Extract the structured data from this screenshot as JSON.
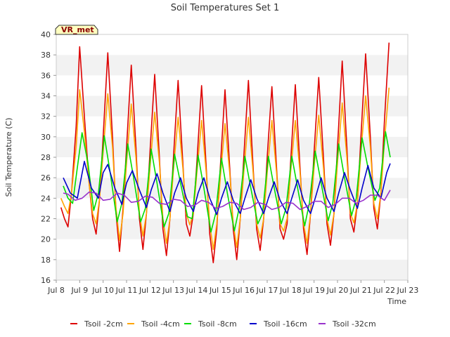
{
  "chart_data": {
    "type": "line",
    "title": "Soil Temperatures Set 1",
    "xlabel": "Time",
    "ylabel": "Soil Temperature (C)",
    "xlim": [
      8,
      23
    ],
    "ylim": [
      16,
      40
    ],
    "x_ticks": [
      {
        "value": 8,
        "label": "Jul 8"
      },
      {
        "value": 9,
        "label": "Jul 9"
      },
      {
        "value": 10,
        "label": "Jul 10"
      },
      {
        "value": 11,
        "label": "Jul 11"
      },
      {
        "value": 12,
        "label": "Jul 12"
      },
      {
        "value": 13,
        "label": "Jul 13"
      },
      {
        "value": 14,
        "label": "Jul 14"
      },
      {
        "value": 15,
        "label": "Jul 15"
      },
      {
        "value": 16,
        "label": "Jul 16"
      },
      {
        "value": 17,
        "label": "Jul 17"
      },
      {
        "value": 18,
        "label": "Jul 18"
      },
      {
        "value": 19,
        "label": "Jul 19"
      },
      {
        "value": 20,
        "label": "Jul 20"
      },
      {
        "value": 21,
        "label": "Jul 21"
      },
      {
        "value": 22,
        "label": "Jul 22"
      },
      {
        "value": 23,
        "label": "Jul 23"
      }
    ],
    "y_ticks": [
      16,
      18,
      20,
      22,
      24,
      26,
      28,
      30,
      32,
      34,
      36,
      38,
      40
    ],
    "grid": "horizontal bands",
    "legend_position": "bottom",
    "station_label": "VR_met",
    "series": [
      {
        "name": "Tsoil -2cm",
        "color": "#dd0000",
        "x": [
          8.2,
          8.35,
          8.5,
          8.65,
          8.85,
          9.0,
          9.2,
          9.4,
          9.55,
          9.7,
          9.85,
          10.0,
          10.2,
          10.4,
          10.55,
          10.7,
          10.85,
          11.0,
          11.2,
          11.4,
          11.55,
          11.7,
          11.85,
          12.0,
          12.2,
          12.4,
          12.55,
          12.7,
          12.85,
          13.0,
          13.2,
          13.4,
          13.55,
          13.7,
          13.85,
          14.0,
          14.2,
          14.4,
          14.55,
          14.7,
          14.85,
          15.0,
          15.2,
          15.4,
          15.55,
          15.7,
          15.85,
          16.0,
          16.2,
          16.4,
          16.55,
          16.7,
          16.85,
          17.0,
          17.2,
          17.4,
          17.55,
          17.7,
          17.85,
          18.0,
          18.2,
          18.4,
          18.55,
          18.7,
          18.85,
          19.0,
          19.2,
          19.4,
          19.55,
          19.7,
          19.85,
          20.0,
          20.2,
          20.4,
          20.55,
          20.7,
          20.85,
          21.0,
          21.2,
          21.4,
          21.55,
          21.7,
          21.85,
          22.0,
          22.2
        ],
        "y": [
          23.1,
          22.0,
          21.2,
          24.5,
          31.0,
          38.8,
          32.0,
          25.5,
          22.0,
          20.5,
          24.0,
          30.0,
          38.2,
          30.0,
          22.5,
          18.8,
          23.0,
          29.0,
          37.0,
          29.0,
          22.0,
          19.0,
          22.5,
          28.5,
          36.1,
          28.0,
          21.0,
          18.4,
          22.0,
          28.0,
          35.5,
          27.5,
          21.5,
          20.3,
          22.5,
          27.5,
          35.0,
          27.0,
          20.5,
          17.7,
          21.0,
          27.0,
          34.6,
          27.0,
          21.0,
          18.0,
          22.0,
          28.0,
          35.5,
          27.0,
          21.0,
          18.9,
          22.0,
          28.0,
          34.9,
          27.0,
          21.0,
          20.0,
          21.5,
          27.5,
          35.1,
          27.0,
          21.0,
          18.5,
          22.5,
          28.5,
          35.8,
          28.0,
          21.5,
          19.4,
          22.5,
          29.0,
          37.4,
          29.0,
          22.0,
          20.7,
          23.5,
          30.0,
          38.1,
          30.0,
          23.0,
          21.0,
          24.5,
          31.5,
          39.2
        ]
      },
      {
        "name": "Tsoil -4cm",
        "color": "#ffa500",
        "x": [
          8.2,
          8.35,
          8.5,
          8.65,
          8.85,
          9.0,
          9.2,
          9.4,
          9.55,
          9.7,
          9.85,
          10.0,
          10.2,
          10.4,
          10.55,
          10.7,
          10.85,
          11.0,
          11.2,
          11.4,
          11.55,
          11.7,
          11.85,
          12.0,
          12.2,
          12.4,
          12.55,
          12.7,
          12.85,
          13.0,
          13.2,
          13.4,
          13.55,
          13.7,
          13.85,
          14.0,
          14.2,
          14.4,
          14.55,
          14.7,
          14.85,
          15.0,
          15.2,
          15.4,
          15.55,
          15.7,
          15.85,
          16.0,
          16.2,
          16.4,
          16.55,
          16.7,
          16.85,
          17.0,
          17.2,
          17.4,
          17.55,
          17.7,
          17.85,
          18.0,
          18.2,
          18.4,
          18.55,
          18.7,
          18.85,
          19.0,
          19.2,
          19.4,
          19.55,
          19.7,
          19.85,
          20.0,
          20.2,
          20.4,
          20.55,
          20.7,
          20.85,
          21.0,
          21.2,
          21.4,
          21.55,
          21.7,
          21.85,
          22.0,
          22.2
        ],
        "y": [
          24.0,
          23.2,
          22.5,
          24.5,
          29.0,
          34.6,
          30.5,
          25.5,
          22.5,
          21.5,
          24.0,
          28.5,
          34.2,
          29.0,
          23.0,
          19.9,
          22.5,
          27.5,
          33.2,
          28.0,
          22.5,
          20.3,
          22.5,
          27.0,
          32.4,
          27.5,
          22.0,
          19.6,
          22.0,
          26.8,
          31.9,
          27.0,
          22.5,
          21.4,
          22.5,
          26.5,
          31.6,
          26.5,
          21.5,
          19.0,
          21.5,
          26.0,
          31.3,
          26.5,
          21.5,
          19.2,
          22.0,
          26.5,
          31.9,
          26.5,
          21.5,
          20.1,
          22.0,
          26.5,
          31.6,
          26.5,
          21.5,
          20.8,
          22.0,
          26.5,
          31.6,
          26.5,
          21.5,
          19.6,
          22.5,
          27.0,
          32.1,
          27.0,
          22.0,
          20.4,
          22.5,
          27.5,
          33.3,
          28.0,
          22.5,
          21.6,
          23.5,
          28.5,
          34.0,
          29.0,
          23.5,
          22.0,
          24.5,
          29.5,
          34.8
        ]
      },
      {
        "name": "Tsoil -8cm",
        "color": "#00dd00",
        "x": [
          8.3,
          8.5,
          8.7,
          8.9,
          9.1,
          9.35,
          9.6,
          9.8,
          10.05,
          10.3,
          10.6,
          10.8,
          11.05,
          11.3,
          11.6,
          11.8,
          12.05,
          12.3,
          12.6,
          12.8,
          13.05,
          13.3,
          13.6,
          13.8,
          14.05,
          14.3,
          14.6,
          14.8,
          15.05,
          15.3,
          15.6,
          15.8,
          16.05,
          16.3,
          16.6,
          16.8,
          17.05,
          17.3,
          17.6,
          17.8,
          18.05,
          18.3,
          18.6,
          18.8,
          19.05,
          19.3,
          19.6,
          19.8,
          20.05,
          20.3,
          20.6,
          20.8,
          21.05,
          21.3,
          21.6,
          21.8,
          22.05,
          22.25
        ],
        "y": [
          25.2,
          24.0,
          23.5,
          27.0,
          30.4,
          27.5,
          22.8,
          24.5,
          30.1,
          26.5,
          21.7,
          23.5,
          29.3,
          26.0,
          21.7,
          23.0,
          28.8,
          25.5,
          21.2,
          22.5,
          28.3,
          25.5,
          22.2,
          22.0,
          28.2,
          25.0,
          20.7,
          22.5,
          27.9,
          24.5,
          20.8,
          23.0,
          28.1,
          25.0,
          21.5,
          22.5,
          28.1,
          25.0,
          21.5,
          23.0,
          28.1,
          25.0,
          21.3,
          23.5,
          28.6,
          25.5,
          21.8,
          23.5,
          29.3,
          26.0,
          22.3,
          24.0,
          29.9,
          27.0,
          23.8,
          25.0,
          30.5,
          28.0
        ]
      },
      {
        "name": "Tsoil -16cm",
        "color": "#0000cc",
        "x": [
          8.3,
          8.6,
          8.9,
          9.2,
          9.5,
          9.8,
          10.0,
          10.2,
          10.5,
          10.8,
          11.0,
          11.25,
          11.55,
          11.85,
          12.05,
          12.3,
          12.55,
          12.85,
          13.05,
          13.3,
          13.55,
          13.85,
          14.05,
          14.3,
          14.55,
          14.85,
          15.05,
          15.3,
          15.55,
          15.85,
          16.05,
          16.3,
          16.55,
          16.85,
          17.05,
          17.3,
          17.55,
          17.85,
          18.05,
          18.3,
          18.55,
          18.85,
          19.05,
          19.3,
          19.55,
          19.85,
          20.05,
          20.3,
          20.55,
          20.85,
          21.05,
          21.3,
          21.55,
          21.85,
          22.1,
          22.25
        ],
        "y": [
          26.0,
          24.5,
          24.0,
          27.6,
          25.0,
          24.0,
          26.5,
          27.3,
          25.0,
          23.4,
          25.5,
          26.7,
          24.8,
          23.1,
          24.8,
          26.4,
          24.5,
          22.7,
          24.5,
          26.0,
          24.0,
          22.7,
          24.5,
          26.0,
          24.0,
          22.4,
          24.0,
          25.6,
          23.8,
          22.5,
          24.0,
          25.8,
          24.0,
          22.5,
          24.0,
          25.6,
          23.8,
          22.5,
          24.0,
          25.8,
          23.8,
          22.5,
          24.0,
          26.0,
          24.0,
          22.7,
          24.5,
          26.5,
          24.8,
          23.0,
          25.0,
          27.2,
          25.0,
          24.0,
          26.5,
          27.4
        ]
      },
      {
        "name": "Tsoil -32cm",
        "color": "#9933cc",
        "x": [
          8.3,
          8.5,
          8.8,
          9.1,
          9.4,
          9.7,
          10.0,
          10.3,
          10.6,
          10.9,
          11.2,
          11.5,
          11.8,
          12.1,
          12.4,
          12.7,
          13.0,
          13.3,
          13.6,
          13.9,
          14.2,
          14.5,
          14.8,
          15.1,
          15.4,
          15.7,
          16.0,
          16.3,
          16.6,
          16.9,
          17.2,
          17.5,
          17.8,
          18.1,
          18.4,
          18.7,
          19.0,
          19.3,
          19.6,
          19.9,
          20.2,
          20.5,
          20.8,
          21.1,
          21.4,
          21.7,
          22.0,
          22.25
        ],
        "y": [
          24.5,
          24.4,
          23.8,
          24.0,
          24.6,
          24.5,
          23.8,
          23.9,
          24.5,
          24.3,
          23.6,
          23.7,
          24.2,
          24.1,
          23.5,
          23.4,
          23.9,
          23.8,
          23.2,
          23.3,
          23.8,
          23.6,
          23.0,
          23.2,
          23.6,
          23.5,
          22.9,
          23.1,
          23.6,
          23.4,
          22.9,
          23.1,
          23.6,
          23.5,
          22.9,
          23.2,
          23.7,
          23.7,
          23.1,
          23.4,
          24.0,
          24.0,
          23.5,
          23.8,
          24.3,
          24.3,
          23.8,
          24.8
        ]
      }
    ]
  }
}
